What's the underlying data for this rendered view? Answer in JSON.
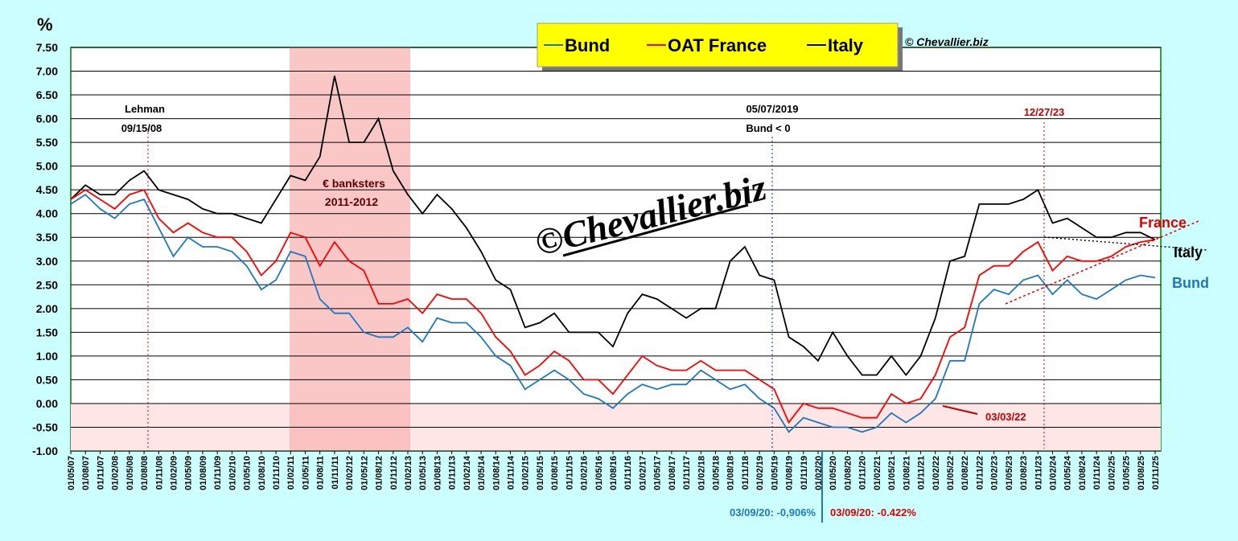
{
  "chart_data": {
    "type": "line",
    "y_unit": "%",
    "credit": "© Chevallier.biz",
    "watermark": "©Chevallier.biz",
    "x": [
      "01/05/07",
      "01/08/07",
      "01/11/07",
      "01/02/08",
      "01/05/08",
      "01/08/08",
      "01/11/08",
      "01/02/09",
      "01/05/09",
      "01/08/09",
      "01/11/09",
      "01/02/10",
      "01/05/10",
      "01/08/10",
      "01/11/10",
      "01/02/11",
      "01/05/11",
      "01/08/11",
      "01/11/11",
      "01/02/12",
      "01/05/12",
      "01/08/12",
      "01/11/12",
      "01/02/13",
      "01/05/13",
      "01/08/13",
      "01/11/13",
      "01/02/14",
      "01/05/14",
      "01/08/14",
      "01/11/14",
      "01/02/15",
      "01/05/15",
      "01/08/15",
      "01/11/15",
      "01/02/16",
      "01/05/16",
      "01/08/16",
      "01/11/16",
      "01/02/17",
      "01/05/17",
      "01/08/17",
      "01/11/17",
      "01/02/18",
      "01/05/18",
      "01/08/18",
      "01/11/18",
      "01/02/19",
      "01/05/19",
      "01/08/19",
      "01/11/19",
      "01/02/20",
      "01/05/20",
      "01/08/20",
      "01/11/20",
      "01/02/21",
      "01/05/21",
      "01/08/21",
      "01/11/21",
      "01/02/22",
      "01/05/22",
      "01/08/22",
      "01/11/22",
      "01/02/23",
      "01/05/23",
      "01/08/23",
      "01/11/23",
      "01/02/24",
      "01/05/24",
      "01/08/24",
      "01/11/24",
      "01/02/25",
      "01/05/25",
      "01/08/25",
      "01/11/25"
    ],
    "series": [
      {
        "name": "Bund",
        "color": "#1f77c0",
        "values": [
          4.2,
          4.4,
          4.1,
          3.9,
          4.2,
          4.3,
          3.7,
          3.1,
          3.5,
          3.3,
          3.3,
          3.2,
          2.9,
          2.4,
          2.6,
          3.2,
          3.1,
          2.2,
          1.9,
          1.9,
          1.5,
          1.4,
          1.4,
          1.6,
          1.3,
          1.8,
          1.7,
          1.7,
          1.4,
          1.0,
          0.8,
          0.3,
          0.5,
          0.7,
          0.5,
          0.2,
          0.1,
          -0.1,
          0.2,
          0.4,
          0.3,
          0.4,
          0.4,
          0.7,
          0.5,
          0.3,
          0.4,
          0.1,
          -0.1,
          -0.6,
          -0.3,
          -0.4,
          -0.5,
          -0.5,
          -0.6,
          -0.5,
          -0.2,
          -0.4,
          -0.2,
          0.1,
          0.9,
          0.9,
          2.1,
          2.4,
          2.3,
          2.6,
          2.7,
          2.3,
          2.6,
          2.3,
          2.2,
          2.4,
          2.6,
          2.7,
          2.65
        ]
      },
      {
        "name": "OAT France",
        "color": "#ff0000",
        "values": [
          4.3,
          4.5,
          4.3,
          4.1,
          4.4,
          4.5,
          3.9,
          3.6,
          3.8,
          3.6,
          3.5,
          3.5,
          3.2,
          2.7,
          3.0,
          3.6,
          3.5,
          2.9,
          3.4,
          3.0,
          2.8,
          2.1,
          2.1,
          2.2,
          1.9,
          2.3,
          2.2,
          2.2,
          1.9,
          1.4,
          1.1,
          0.6,
          0.8,
          1.1,
          0.9,
          0.5,
          0.5,
          0.2,
          0.6,
          1.0,
          0.8,
          0.7,
          0.7,
          0.9,
          0.7,
          0.7,
          0.7,
          0.5,
          0.3,
          -0.4,
          0.0,
          -0.1,
          -0.1,
          -0.2,
          -0.3,
          -0.3,
          0.2,
          0.0,
          0.1,
          0.6,
          1.4,
          1.6,
          2.7,
          2.9,
          2.9,
          3.2,
          3.4,
          2.8,
          3.1,
          3.0,
          3.0,
          3.1,
          3.3,
          3.4,
          3.45
        ]
      },
      {
        "name": "Italy",
        "color": "#000000",
        "values": [
          4.3,
          4.6,
          4.4,
          4.4,
          4.7,
          4.9,
          4.5,
          4.4,
          4.3,
          4.1,
          4.0,
          4.0,
          3.9,
          3.8,
          4.3,
          4.8,
          4.7,
          5.2,
          6.9,
          5.5,
          5.5,
          6.0,
          4.9,
          4.4,
          4.0,
          4.4,
          4.1,
          3.7,
          3.2,
          2.6,
          2.4,
          1.6,
          1.7,
          1.9,
          1.5,
          1.5,
          1.5,
          1.2,
          1.9,
          2.3,
          2.2,
          2.0,
          1.8,
          2.0,
          2.0,
          3.0,
          3.3,
          2.7,
          2.6,
          1.4,
          1.2,
          0.9,
          1.5,
          1.0,
          0.6,
          0.6,
          1.0,
          0.6,
          1.0,
          1.8,
          3.0,
          3.1,
          4.2,
          4.2,
          4.2,
          4.3,
          4.5,
          3.8,
          3.9,
          3.7,
          3.5,
          3.5,
          3.6,
          3.6,
          3.45
        ]
      }
    ],
    "ylim": [
      -1,
      7.5
    ],
    "yticks": [
      {
        "value": -1,
        "label": "-1.00"
      },
      {
        "value": -0.5,
        "label": "-0.50"
      },
      {
        "value": 0,
        "label": "0.00"
      },
      {
        "value": 0.5,
        "label": "0.50"
      },
      {
        "value": 1,
        "label": "1.00"
      },
      {
        "value": 1.5,
        "label": "1.50"
      },
      {
        "value": 2,
        "label": "2.00"
      },
      {
        "value": 2.5,
        "label": "2.50"
      },
      {
        "value": 3,
        "label": "3.00"
      },
      {
        "value": 3.5,
        "label": "3.50"
      },
      {
        "value": 4,
        "label": "4.00"
      },
      {
        "value": 4.5,
        "label": "4.50"
      },
      {
        "value": 5,
        "label": "5.00"
      },
      {
        "value": 5.5,
        "label": "5.50"
      },
      {
        "value": 6,
        "label": "6.00"
      },
      {
        "value": 6.5,
        "label": "6.50"
      },
      {
        "value": 7,
        "label": "7.00"
      },
      {
        "value": 7.5,
        "label": "7.50"
      }
    ],
    "grid": true,
    "annotations": [
      "Lehman",
      "09/15/08",
      "€ banksters",
      "2011-2012",
      "05/07/2019",
      "Bund < 0",
      "12/27/23",
      "03/03/22",
      "03/09/20: -0,906%",
      "03/09/20:  -0.422%",
      "France",
      "Italy",
      "Bund"
    ]
  }
}
